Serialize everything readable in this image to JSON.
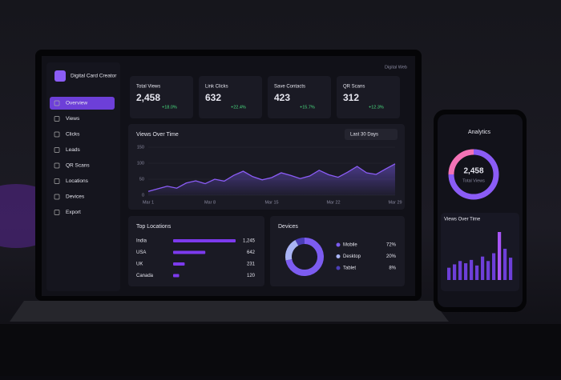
{
  "brand": "Digital Card Creator",
  "account": "Digital Web",
  "nav": [
    "Overview",
    "Views",
    "Clicks",
    "Leads",
    "QR Scans",
    "Locations",
    "Devices",
    "Export"
  ],
  "stats": [
    {
      "label": "Total Views",
      "value": "2,458",
      "change": "+18.0%"
    },
    {
      "label": "Link Clicks",
      "value": "632",
      "change": "+22.4%"
    },
    {
      "label": "Save Contacts",
      "value": "423",
      "change": "+15.7%"
    },
    {
      "label": "QR Scans",
      "value": "312",
      "change": "+12.3%"
    }
  ],
  "views_chart": {
    "title": "Views Over Time",
    "range": "Last 30 Days",
    "ylim": [
      0,
      150
    ],
    "yticks": [
      0,
      50,
      100,
      150
    ],
    "xtick_labels": [
      "Mar 1",
      "Mar 8",
      "Mar 15",
      "Mar 22",
      "Mar 29"
    ],
    "values": [
      12,
      20,
      28,
      22,
      38,
      45,
      36,
      50,
      44,
      62,
      75,
      58,
      48,
      55,
      70,
      62,
      52,
      60,
      78,
      64,
      56,
      72,
      90,
      70,
      65,
      82,
      98
    ]
  },
  "locations": {
    "title": "Top Locations",
    "items": [
      {
        "name": "India",
        "value": 1245,
        "label": "1,245"
      },
      {
        "name": "USA",
        "value": 642,
        "label": "642"
      },
      {
        "name": "UK",
        "value": 231,
        "label": "231"
      },
      {
        "name": "Canada",
        "value": 120,
        "label": "120"
      }
    ]
  },
  "devices": {
    "title": "Devices",
    "items": [
      {
        "name": "Mobile",
        "value": 72,
        "label": "72%",
        "color": "#7c5cf0"
      },
      {
        "name": "Desktop",
        "value": 20,
        "label": "20%",
        "color": "#a9b4f5"
      },
      {
        "name": "Tablet",
        "value": 8,
        "label": "8%",
        "color": "#4b3fb8"
      }
    ]
  },
  "phone": {
    "title": "Analytics",
    "total": "2,458",
    "total_label": "Total Views",
    "chart_title": "Views Over Time",
    "segments": [
      {
        "value": 75,
        "color": "#8b5cf6"
      },
      {
        "value": 25,
        "color": "#f472b6"
      }
    ],
    "bars": [
      22,
      28,
      34,
      30,
      36,
      26,
      42,
      34,
      48,
      86,
      56,
      40
    ]
  }
}
